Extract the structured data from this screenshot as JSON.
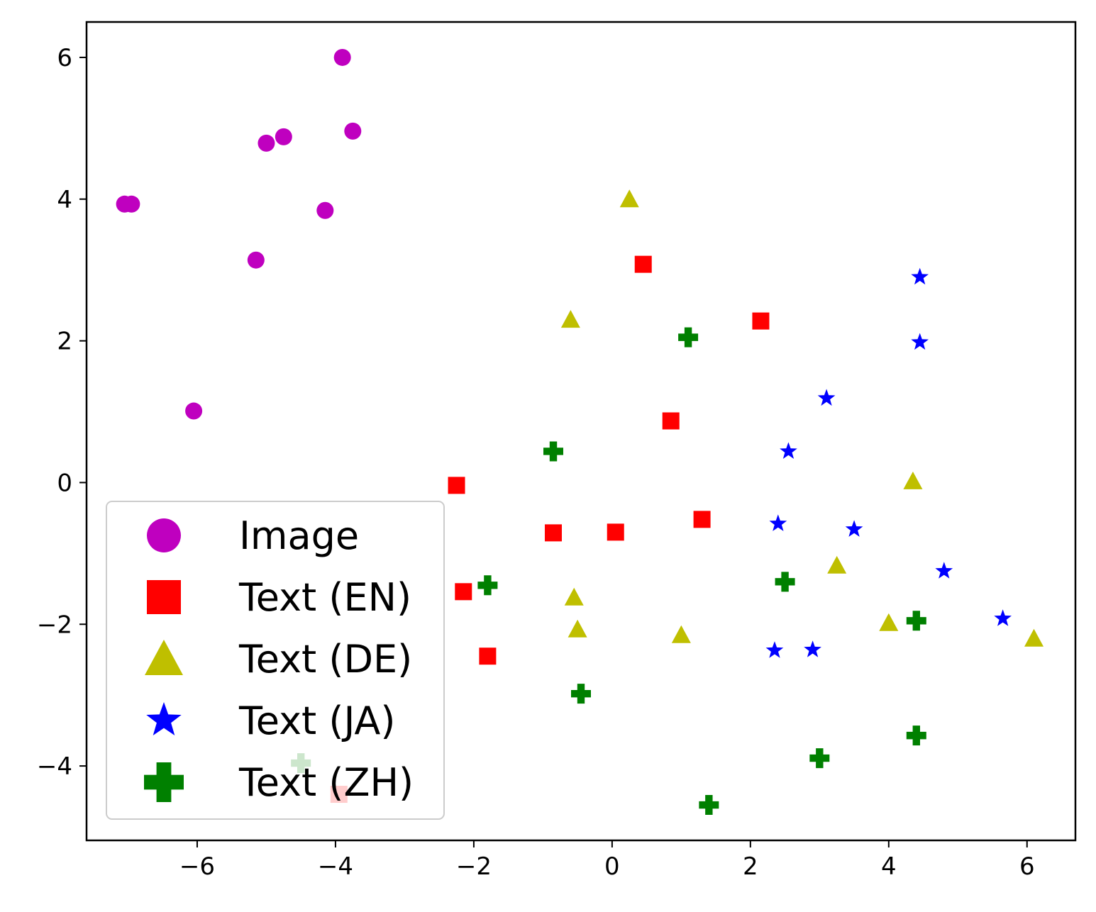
{
  "chart_data": {
    "type": "scatter",
    "title": "",
    "xlabel": "",
    "ylabel": "",
    "xlim": [
      -7.6,
      6.7
    ],
    "ylim": [
      -5.05,
      6.5
    ],
    "xticks": [
      -6,
      -4,
      -2,
      0,
      2,
      4,
      6
    ],
    "yticks": [
      -4,
      -2,
      0,
      2,
      4,
      6
    ],
    "xtick_labels": [
      "−6",
      "−4",
      "−2",
      "0",
      "2",
      "4",
      "6"
    ],
    "ytick_labels": [
      "−4",
      "−2",
      "0",
      "2",
      "4",
      "6"
    ],
    "grid": false,
    "legend_position": "lower-left",
    "series": [
      {
        "name": "Image",
        "marker": "circle",
        "color": "#bf00bf",
        "x": [
          -3.9,
          -3.75,
          -4.75,
          -5.0,
          -7.05,
          -6.95,
          -4.15,
          -5.15,
          -6.05
        ],
        "y": [
          6.0,
          4.96,
          4.88,
          4.79,
          3.93,
          3.93,
          3.84,
          3.14,
          1.01
        ]
      },
      {
        "name": "Text (EN)",
        "marker": "square",
        "color": "#ff0000",
        "x": [
          0.45,
          2.15,
          0.85,
          -2.25,
          -0.85,
          0.05,
          1.3,
          -2.15,
          -1.8,
          -3.95
        ],
        "y": [
          3.08,
          2.28,
          0.87,
          -0.04,
          -0.71,
          -0.7,
          -0.52,
          -1.54,
          -2.45,
          -4.4
        ]
      },
      {
        "name": "Text (DE)",
        "marker": "triangle",
        "color": "#bfbf00",
        "x": [
          0.25,
          -0.6,
          4.35,
          3.25,
          -0.55,
          -0.5,
          1.0,
          4.0,
          6.1
        ],
        "y": [
          4.0,
          2.3,
          0.02,
          -1.17,
          -1.62,
          -2.07,
          -2.15,
          -1.98,
          -2.2
        ]
      },
      {
        "name": "Text (JA)",
        "marker": "star",
        "color": "#0000ff",
        "x": [
          4.45,
          4.45,
          3.1,
          2.55,
          2.4,
          3.5,
          4.8,
          5.65,
          2.35,
          2.9
        ],
        "y": [
          2.9,
          1.98,
          1.19,
          0.44,
          -0.58,
          -0.66,
          -1.25,
          -1.92,
          -2.37,
          -2.36
        ]
      },
      {
        "name": "Text (ZH)",
        "marker": "plus",
        "color": "#008000",
        "x": [
          1.1,
          -0.85,
          -1.8,
          2.5,
          4.4,
          -0.45,
          4.4,
          3.0,
          -4.5,
          1.4
        ],
        "y": [
          2.05,
          0.44,
          -1.45,
          -1.4,
          -1.95,
          -2.98,
          -3.57,
          -3.89,
          -3.96,
          -4.55
        ]
      }
    ]
  }
}
